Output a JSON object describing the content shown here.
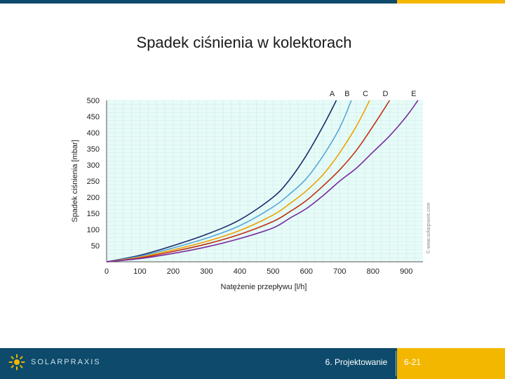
{
  "slide": {
    "title": "Spadek ciśnienia w kolektorach",
    "footer_section": "6. Projektowanie",
    "footer_page": "6-21",
    "brand": "SOLARPRAXIS",
    "copyright": "© www.solarpraxis.com"
  },
  "colors": {
    "header_blue": "#0d4a6b",
    "accent_yellow": "#f3b700",
    "plot_bg": "#e7fbf8",
    "grid": "#c9eee9"
  },
  "chart_data": {
    "type": "line",
    "title": "",
    "xlabel": "Natężenie przepływu [l/h]",
    "ylabel": "Spadek ciśnienia [mbar]",
    "xlim": [
      0,
      950
    ],
    "ylim": [
      0,
      500
    ],
    "xticks": [
      "0",
      "100",
      "200",
      "300",
      "400",
      "500",
      "600",
      "700",
      "800",
      "900"
    ],
    "yticks": [
      "50",
      "100",
      "150",
      "200",
      "250",
      "300",
      "350",
      "400",
      "450",
      "500"
    ],
    "grid": true,
    "legend": "top (labels above curve ends)",
    "series": [
      {
        "name": "A",
        "color": "#1b2a6b",
        "x": [
          0,
          100,
          200,
          300,
          400,
          500,
          550,
          600,
          650,
          690
        ],
        "y": [
          0,
          20,
          50,
          85,
          130,
          200,
          255,
          330,
          420,
          500
        ]
      },
      {
        "name": "B",
        "color": "#5aa6d6",
        "x": [
          0,
          100,
          200,
          300,
          400,
          500,
          550,
          600,
          650,
          700,
          735
        ],
        "y": [
          0,
          17,
          43,
          73,
          112,
          170,
          210,
          258,
          328,
          415,
          500
        ]
      },
      {
        "name": "C",
        "color": "#f0a000",
        "x": [
          0,
          100,
          200,
          300,
          400,
          500,
          550,
          600,
          650,
          700,
          750,
          790
        ],
        "y": [
          0,
          14,
          37,
          63,
          97,
          145,
          180,
          220,
          270,
          338,
          420,
          500
        ]
      },
      {
        "name": "D",
        "color": "#c03010",
        "x": [
          0,
          100,
          200,
          300,
          400,
          500,
          550,
          600,
          650,
          700,
          750,
          800,
          850
        ],
        "y": [
          0,
          12,
          32,
          55,
          85,
          125,
          155,
          190,
          235,
          285,
          345,
          420,
          500
        ]
      },
      {
        "name": "E",
        "color": "#7a2aa0",
        "x": [
          0,
          100,
          200,
          300,
          400,
          500,
          550,
          600,
          650,
          700,
          750,
          800,
          850,
          900,
          935
        ],
        "y": [
          0,
          10,
          26,
          46,
          72,
          105,
          135,
          165,
          205,
          250,
          290,
          340,
          390,
          450,
          500
        ]
      }
    ]
  }
}
